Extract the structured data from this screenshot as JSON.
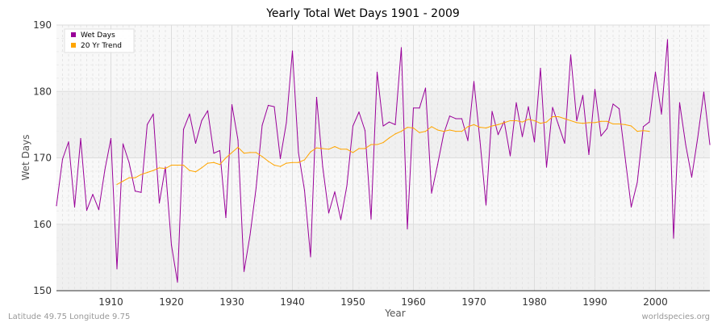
{
  "chart_data": {
    "type": "line",
    "title": "Yearly Total Wet Days 1901 - 2009",
    "xlabel": "Year",
    "ylabel": "Wet Days",
    "xlim": [
      1901,
      2009
    ],
    "ylim": [
      150,
      190
    ],
    "x_ticks": [
      1910,
      1920,
      1930,
      1940,
      1950,
      1960,
      1970,
      1980,
      1990,
      2000
    ],
    "y_ticks": [
      150,
      160,
      170,
      180,
      190
    ],
    "legend_position": "top-left",
    "series": [
      {
        "name": "Wet Days",
        "color": "#990099",
        "x_start": 1901,
        "values": [
          162.8,
          169.8,
          172.4,
          162.6,
          172.9,
          162.1,
          164.5,
          162.2,
          168.2,
          172.9,
          153.3,
          172.1,
          169.3,
          165.0,
          164.8,
          175.0,
          176.6,
          163.2,
          168.6,
          156.9,
          151.3,
          174.3,
          176.6,
          172.2,
          175.6,
          177.1,
          170.7,
          171.1,
          161.0,
          178.0,
          172.7,
          152.9,
          158.4,
          165.5,
          174.9,
          177.9,
          177.7,
          169.9,
          175.3,
          186.1,
          170.8,
          165.1,
          155.1,
          179.1,
          168.7,
          161.7,
          164.9,
          160.7,
          165.8,
          174.8,
          176.9,
          174.1,
          160.8,
          182.9,
          174.8,
          175.4,
          175.0,
          186.6,
          159.3,
          177.5,
          177.5,
          180.5,
          164.7,
          169.0,
          173.6,
          176.3,
          175.9,
          175.9,
          172.6,
          181.5,
          172.6,
          162.9,
          177.0,
          173.5,
          175.5,
          170.3,
          178.3,
          173.2,
          177.7,
          172.4,
          183.5,
          168.6,
          177.6,
          174.9,
          172.2,
          185.5,
          175.6,
          179.4,
          170.5,
          180.3,
          173.3,
          174.4,
          178.1,
          177.4,
          170.0,
          162.6,
          166.3,
          174.7,
          175.4,
          182.9,
          176.6,
          187.8,
          157.9,
          178.3,
          172.0,
          167.1,
          173.1,
          179.9,
          172.0
        ]
      },
      {
        "name": "20 Yr Trend",
        "color": "#ffa500",
        "x_start": 1911,
        "values": [
          166.0,
          166.5,
          167.0,
          167.0,
          167.5,
          167.8,
          168.1,
          168.5,
          168.4,
          168.9,
          168.9,
          168.9,
          168.1,
          167.9,
          168.5,
          169.2,
          169.3,
          169.0,
          170.0,
          170.8,
          171.6,
          170.7,
          170.8,
          170.8,
          170.2,
          169.5,
          168.9,
          168.7,
          169.2,
          169.3,
          169.3,
          169.7,
          170.9,
          171.5,
          171.4,
          171.3,
          171.7,
          171.3,
          171.3,
          170.8,
          171.4,
          171.4,
          172.0,
          172.0,
          172.3,
          173.0,
          173.6,
          174.0,
          174.6,
          174.5,
          173.8,
          174.0,
          174.7,
          174.2,
          174.0,
          174.2,
          174.0,
          174.0,
          174.7,
          175.0,
          174.6,
          174.5,
          174.8,
          175.0,
          175.3,
          175.6,
          175.6,
          175.4,
          175.8,
          175.6,
          175.2,
          175.4,
          176.2,
          176.2,
          175.9,
          175.6,
          175.3,
          175.2,
          175.3,
          175.3,
          175.5,
          175.5,
          175.1,
          175.1,
          175.0,
          174.8,
          174.0,
          174.1,
          174.0
        ]
      }
    ]
  },
  "footer": {
    "left": "Latitude 49.75 Longitude 9.75",
    "right": "worldspecies.org"
  }
}
